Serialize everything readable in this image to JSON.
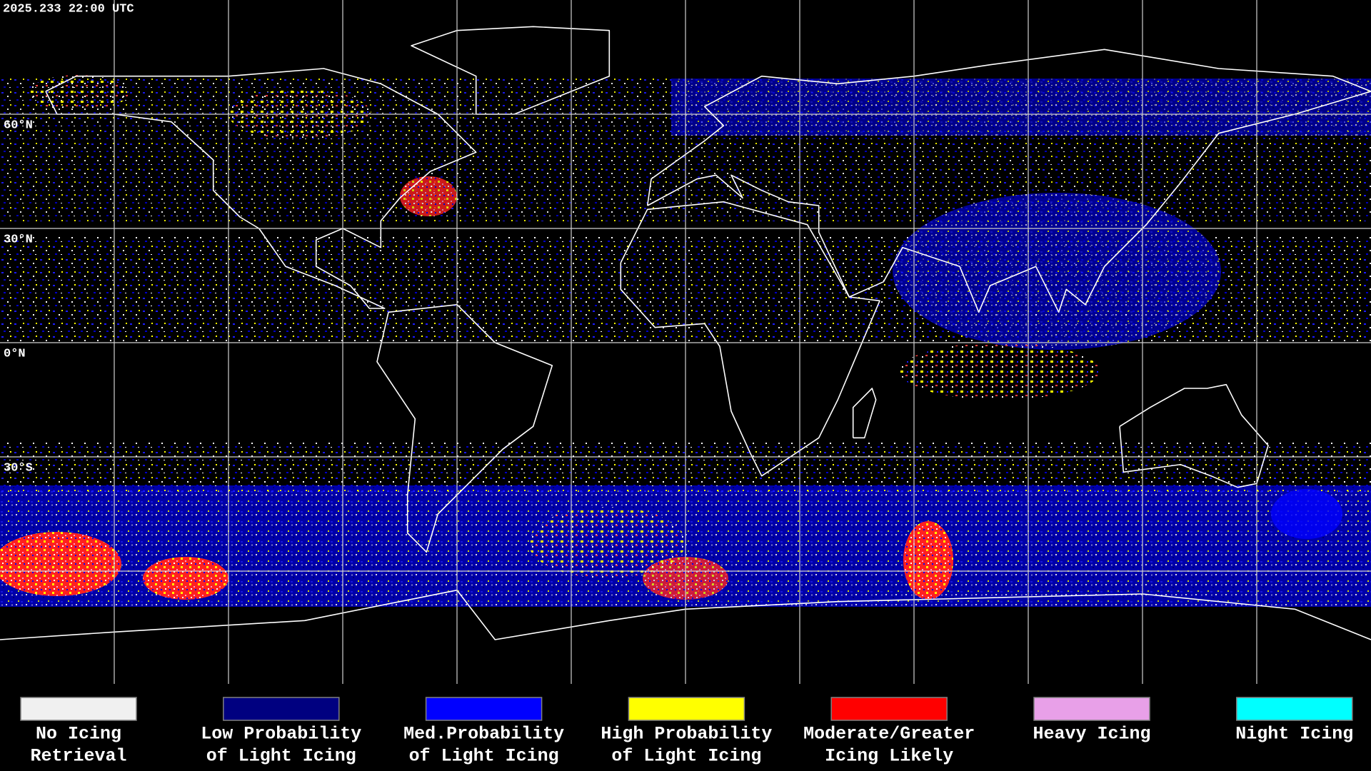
{
  "header": {
    "timestamp": "2025.233 22:00 UTC"
  },
  "map": {
    "lat_labels": [
      "60°N",
      "30°N",
      "0°N",
      "30°S"
    ]
  },
  "legend": {
    "items": [
      {
        "lines": [
          "No Icing",
          "Retrieval"
        ],
        "color": "#f0f0f0"
      },
      {
        "lines": [
          "Low Probability",
          "of Light Icing"
        ],
        "color": "#000080"
      },
      {
        "lines": [
          "Med.Probability",
          "of Light Icing"
        ],
        "color": "#0000ff"
      },
      {
        "lines": [
          "High Probability",
          "of Light Icing"
        ],
        "color": "#ffff00"
      },
      {
        "lines": [
          "Moderate/Greater",
          "Icing Likely"
        ],
        "color": "#ff0000"
      },
      {
        "lines": [
          "Heavy Icing"
        ],
        "color": "#e8a0e8"
      },
      {
        "lines": [
          "Night Icing"
        ],
        "color": "#00ffff"
      }
    ]
  }
}
